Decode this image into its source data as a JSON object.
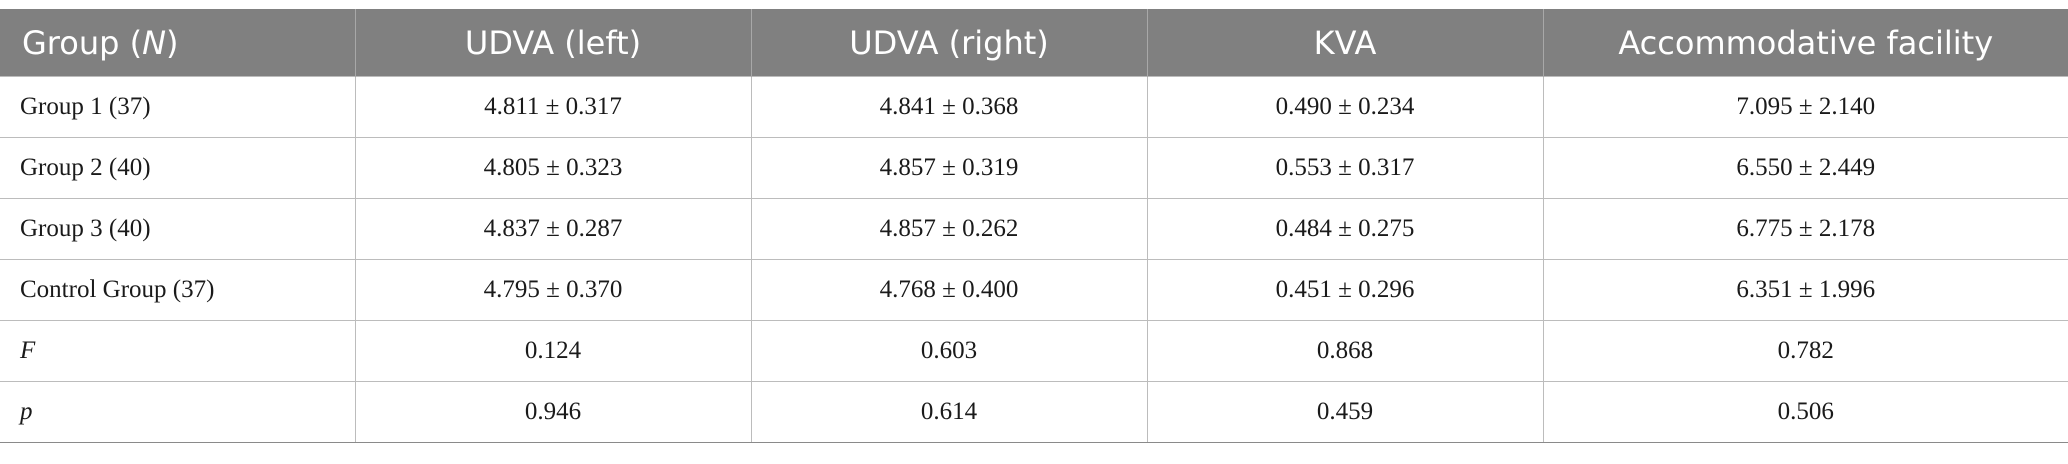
{
  "table": {
    "headers": [
      {
        "prefix": "Group (",
        "italic": "N",
        "suffix": ")"
      },
      {
        "text": "UDVA (left)"
      },
      {
        "text": "UDVA (right)"
      },
      {
        "text": "KVA"
      },
      {
        "text": "Accommodative facility"
      }
    ],
    "rows": [
      {
        "label": "Group 1 (37)",
        "italic": false,
        "cells": [
          "4.811 ± 0.317",
          "4.841 ± 0.368",
          "0.490 ± 0.234",
          "7.095 ± 2.140"
        ]
      },
      {
        "label": "Group 2 (40)",
        "italic": false,
        "cells": [
          "4.805 ± 0.323",
          "4.857 ± 0.319",
          "0.553 ± 0.317",
          "6.550 ± 2.449"
        ]
      },
      {
        "label": "Group 3 (40)",
        "italic": false,
        "cells": [
          "4.837 ± 0.287",
          "4.857 ± 0.262",
          "0.484 ± 0.275",
          "6.775 ± 2.178"
        ]
      },
      {
        "label": "Control Group (37)",
        "italic": false,
        "cells": [
          "4.795 ± 0.370",
          "4.768 ± 0.400",
          "0.451 ± 0.296",
          "6.351 ± 1.996"
        ]
      },
      {
        "label": "F",
        "italic": true,
        "cells": [
          "0.124",
          "0.603",
          "0.868",
          "0.782"
        ]
      },
      {
        "label": "p",
        "italic": true,
        "cells": [
          "0.946",
          "0.614",
          "0.459",
          "0.506"
        ]
      }
    ]
  }
}
